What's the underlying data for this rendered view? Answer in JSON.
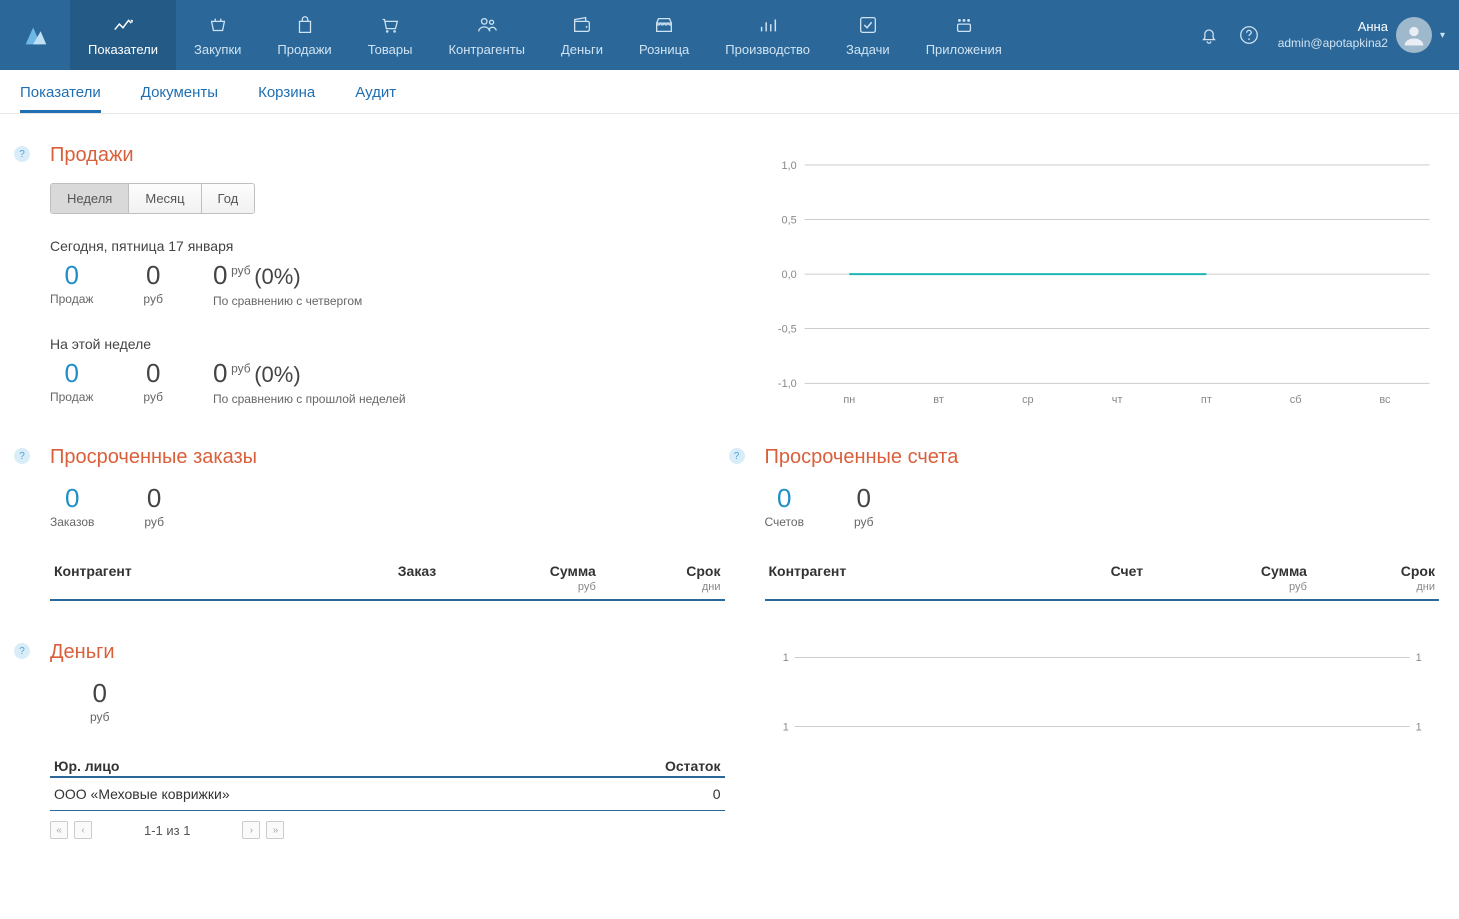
{
  "colors": {
    "topnav_bg": "#2b6899",
    "topnav_active_bg": "#235a86",
    "link": "#1f6fb2",
    "heading": "#d9603b",
    "highlight_value": "#1f8fc6",
    "table_border": "#2b6899",
    "chart_series": "#1fb6b6",
    "chart_grid": "#999999",
    "chart_label": "#888888"
  },
  "nav": {
    "items": [
      {
        "label": "Показатели",
        "active": true
      },
      {
        "label": "Закупки"
      },
      {
        "label": "Продажи"
      },
      {
        "label": "Товары"
      },
      {
        "label": "Контрагенты"
      },
      {
        "label": "Деньги"
      },
      {
        "label": "Розница"
      },
      {
        "label": "Производство"
      },
      {
        "label": "Задачи"
      },
      {
        "label": "Приложения"
      }
    ],
    "user": {
      "name": "Анна",
      "email": "admin@apotapkina2"
    }
  },
  "subnav": [
    {
      "label": "Показатели",
      "active": true
    },
    {
      "label": "Документы"
    },
    {
      "label": "Корзина"
    },
    {
      "label": "Аудит"
    }
  ],
  "sales": {
    "title": "Продажи",
    "segments": {
      "week": "Неделя",
      "month": "Месяц",
      "year": "Год",
      "active": "week"
    },
    "today": {
      "caption": "Сегодня, пятница 17 января",
      "count": "0",
      "count_label": "Продаж",
      "amount": "0",
      "amount_label": "руб",
      "compare_value": "0",
      "compare_unit": "руб",
      "compare_pct": "(0%)",
      "compare_label": "По сравнению с четвергом"
    },
    "week": {
      "caption": "На этой неделе",
      "count": "0",
      "count_label": "Продаж",
      "amount": "0",
      "amount_label": "руб",
      "compare_value": "0",
      "compare_unit": "руб",
      "compare_pct": "(0%)",
      "compare_label": "По сравнению с прошлой неделей"
    },
    "chart": {
      "type": "line",
      "ylim": [
        -1.0,
        1.0
      ],
      "ytick_step": 0.5,
      "yticks": [
        "1,0",
        "0,5",
        "0,0",
        "-0,5",
        "-1,0"
      ],
      "xlabels": [
        "пн",
        "вт",
        "ср",
        "чт",
        "пт",
        "сб",
        "вс"
      ],
      "series": [
        0,
        0,
        0,
        0,
        0,
        null,
        null
      ],
      "series_color": "#1fb6b6",
      "grid_color": "#999999",
      "background": "#ffffff"
    }
  },
  "overdue_orders": {
    "title": "Просроченные заказы",
    "count": "0",
    "count_label": "Заказов",
    "amount": "0",
    "amount_label": "руб",
    "columns": {
      "counterparty": "Контрагент",
      "order": "Заказ",
      "sum": "Сумма",
      "sum_sub": "руб",
      "due": "Срок",
      "due_sub": "дни"
    }
  },
  "overdue_invoices": {
    "title": "Просроченные счета",
    "count": "0",
    "count_label": "Счетов",
    "amount": "0",
    "amount_label": "руб",
    "columns": {
      "counterparty": "Контрагент",
      "invoice": "Счет",
      "sum": "Сумма",
      "sum_sub": "руб",
      "due": "Срок",
      "due_sub": "дни"
    }
  },
  "money": {
    "title": "Деньги",
    "amount": "0",
    "amount_label": "руб",
    "columns": {
      "entity": "Юр. лицо",
      "balance": "Остаток"
    },
    "rows": [
      {
        "entity": "ООО «Меховые коврижки»",
        "balance": "0"
      }
    ],
    "pager": "1-1 из 1",
    "mini_chart": {
      "yticks_left": [
        "1",
        "1"
      ],
      "yticks_right": [
        "1",
        "1"
      ],
      "grid_color": "#999999"
    }
  }
}
